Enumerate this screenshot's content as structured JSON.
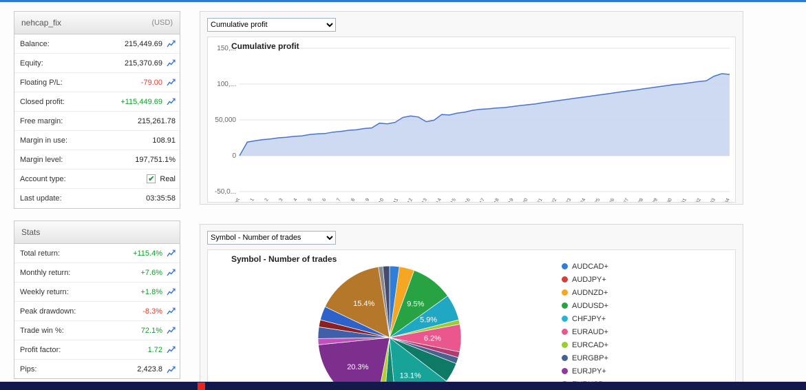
{
  "colors": {
    "positive_green": "#0f9d2a",
    "negative_red": "#e03a2f",
    "top_bar_blue": "#2e7bd6",
    "bottom_bar_navy": "#131a4b",
    "bottom_bar_red_icon": "#e8261d"
  },
  "account_panel": {
    "title": "nehcap_fix",
    "currency": "(USD)",
    "rows": [
      {
        "label": "Balance:",
        "value": "215,449.69",
        "icon": true
      },
      {
        "label": "Equity:",
        "value": "215,370.69",
        "icon": true
      },
      {
        "label": "Floating P/L:",
        "value": "-79.00",
        "color": "red",
        "icon": true
      },
      {
        "label": "Closed profit:",
        "value": "+115,449.69",
        "color": "green",
        "icon": true
      },
      {
        "label": "Free margin:",
        "value": "215,261.78"
      },
      {
        "label": "Margin in use:",
        "value": "108.91"
      },
      {
        "label": "Margin level:",
        "value": "197,751.1%"
      },
      {
        "label": "Account type:",
        "value": "Real",
        "check": true
      },
      {
        "label": "Last update:",
        "value": "03:35:58"
      }
    ]
  },
  "stats_panel": {
    "title": "Stats",
    "rows": [
      {
        "label": "Total return:",
        "value": "+115.4%",
        "color": "green",
        "icon": true
      },
      {
        "label": "Monthly return:",
        "value": "+7.6%",
        "color": "green",
        "icon": true
      },
      {
        "label": "Weekly return:",
        "value": "+1.8%",
        "color": "green",
        "icon": true
      },
      {
        "label": "Peak drawdown:",
        "value": "-8.3%",
        "color": "red",
        "icon": true
      },
      {
        "label": "Trade win %:",
        "value": "72.1%",
        "color": "green",
        "icon": true
      },
      {
        "label": "Profit factor:",
        "value": "1.72",
        "color": "green",
        "icon": true
      },
      {
        "label": "Pips:",
        "value": "2,423.8",
        "icon": true
      }
    ]
  },
  "chart_data": [
    {
      "type": "area",
      "select_label": "Cumulative profit",
      "title": "Cumulative profit",
      "ylim": [
        -50000,
        150000
      ],
      "grid": true,
      "legend": "none",
      "line_color": "#4a74c8",
      "fill_color": "#c8d6f0",
      "y_ticks": [
        {
          "v": 150000,
          "label": "150,..."
        },
        {
          "v": 100000,
          "label": "100,..."
        },
        {
          "v": 50000,
          "label": "50,000"
        },
        {
          "v": 0,
          "label": "0"
        },
        {
          "v": -50000,
          "label": "-50,0..."
        }
      ],
      "x_ticks": [
        "Start",
        "1",
        "2",
        "3",
        "4",
        "5",
        "6",
        "7",
        "8",
        "9",
        "10",
        "11",
        "12",
        "13",
        "14",
        "15",
        "16",
        "17",
        "18",
        "19",
        "20",
        "21",
        "22",
        "23",
        "24",
        "25",
        "26",
        "27",
        "28",
        "29",
        "30",
        "31",
        "32",
        "33",
        "34"
      ],
      "values": [
        0,
        19000,
        21000,
        22500,
        23500,
        25000,
        25800,
        27000,
        27600,
        29500,
        30500,
        31000,
        33000,
        33800,
        35500,
        36200,
        38000,
        38800,
        45500,
        44500,
        46500,
        53500,
        55500,
        54000,
        47500,
        49500,
        57500,
        56800,
        59500,
        61000,
        63500,
        64800,
        65500,
        66500,
        67200,
        68500,
        70000,
        71200,
        72200,
        74000,
        75500,
        77000,
        78500,
        80000,
        81500,
        83000,
        84500,
        86000,
        87500,
        89000,
        90500,
        91800,
        93500,
        95000,
        96500,
        98000,
        99500,
        100500,
        102000,
        103500,
        104500,
        111000,
        114500,
        113500
      ]
    },
    {
      "type": "pie",
      "select_label": "Symbol - Number of trades",
      "title": "Symbol - Number of trades",
      "slices": [
        {
          "value": 2.2,
          "color": "#2f7ed8",
          "label": ""
        },
        {
          "value": 3.4,
          "color": "#f5a623",
          "label": ""
        },
        {
          "value": 9.5,
          "color": "#27a343",
          "label": "9.5%"
        },
        {
          "value": 5.9,
          "color": "#1fa7c4",
          "label": "5.9%"
        },
        {
          "value": 1.0,
          "color": "#9acd32",
          "label": ""
        },
        {
          "value": 6.2,
          "color": "#e9578c",
          "label": "6.2%"
        },
        {
          "value": 1.3,
          "color": "#b23a6e",
          "label": ""
        },
        {
          "value": 1.4,
          "color": "#47628f",
          "label": ""
        },
        {
          "value": 4.5,
          "color": "#0e7a66",
          "label": ""
        },
        {
          "value": 13.1,
          "color": "#17a398",
          "label": "13.1%"
        },
        {
          "value": 2.8,
          "color": "#13866f",
          "label": ""
        },
        {
          "value": 1.8,
          "color": "#b5cc33",
          "label": ""
        },
        {
          "value": 20.3,
          "color": "#7d2f8e",
          "label": "20.3%"
        },
        {
          "value": 1.4,
          "color": "#c24fbb",
          "label": ""
        },
        {
          "value": 2.6,
          "color": "#3f5fa8",
          "label": ""
        },
        {
          "value": 1.6,
          "color": "#8b2020",
          "label": ""
        },
        {
          "value": 3.1,
          "color": "#2f62c9",
          "label": ""
        },
        {
          "value": 15.4,
          "color": "#b5782a",
          "label": "15.4%"
        },
        {
          "value": 1.0,
          "color": "#8a8a8a",
          "label": ""
        },
        {
          "value": 1.5,
          "color": "#444b6e",
          "label": ""
        }
      ],
      "legend": [
        {
          "name": "AUDCAD+",
          "color": "#2f7ed8"
        },
        {
          "name": "AUDJPY+",
          "color": "#d43f3a"
        },
        {
          "name": "AUDNZD+",
          "color": "#f5a623"
        },
        {
          "name": "AUDUSD+",
          "color": "#27a343"
        },
        {
          "name": "CHFJPY+",
          "color": "#27b4d0"
        },
        {
          "name": "EURAUD+",
          "color": "#e9578c"
        },
        {
          "name": "EURCAD+",
          "color": "#9acd32"
        },
        {
          "name": "EURGBP+",
          "color": "#47628f"
        },
        {
          "name": "EURJPY+",
          "color": "#8e3a9e"
        },
        {
          "name": "EURUSD+",
          "color": "#1aadce"
        }
      ]
    }
  ]
}
